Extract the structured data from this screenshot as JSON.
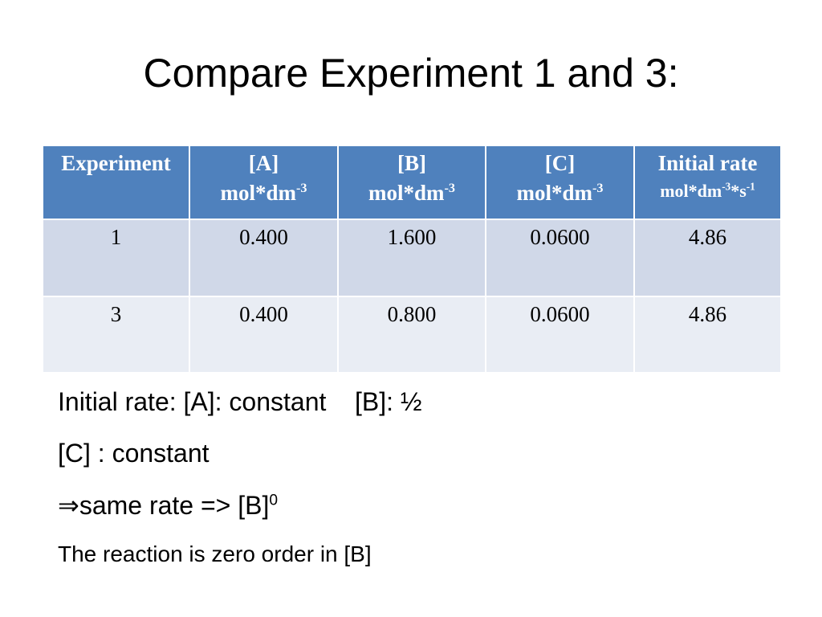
{
  "title": "Compare Experiment 1 and 3:",
  "table": {
    "header": [
      {
        "name": "Experiment",
        "unit": []
      },
      {
        "name": "[A]",
        "unit": [
          {
            "text": "mol*dm",
            "sup": "-3"
          }
        ]
      },
      {
        "name": "[B]",
        "unit": [
          {
            "text": "mol*dm",
            "sup": "-3"
          }
        ]
      },
      {
        "name": "[C]",
        "unit": [
          {
            "text": "mol*dm",
            "sup": "-3"
          }
        ]
      },
      {
        "name": "Initial rate",
        "unit": [
          {
            "text": "mol*dm",
            "sup": "-3"
          },
          {
            "text": "*s",
            "sup": "-1"
          }
        ]
      }
    ],
    "rows": [
      [
        "1",
        "0.400",
        "1.600",
        "0.0600",
        "4.86"
      ],
      [
        "3",
        "0.400",
        "0.800",
        "0.0600",
        "4.86"
      ]
    ]
  },
  "body": [
    {
      "text": "Initial rate: [A]: constant    [B]: ½"
    },
    {
      "text": "[C] : constant"
    },
    {
      "text": "⇒same rate => [B]",
      "sup": "0"
    },
    {
      "text": "The reaction is zero order in [B]"
    }
  ]
}
